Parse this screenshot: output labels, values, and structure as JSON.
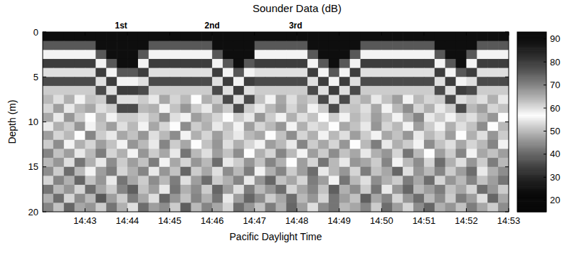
{
  "chart_data": {
    "type": "heatmap",
    "title": "Sounder Data (dB)",
    "x_label": "Pacific Daylight Time",
    "y_label": "Depth (m)",
    "xlim": [
      882,
      893
    ],
    "ylim": [
      0,
      20
    ],
    "xticks": [
      {
        "value": 883,
        "label": "14:43"
      },
      {
        "value": 884,
        "label": "14:44"
      },
      {
        "value": 885,
        "label": "14:45"
      },
      {
        "value": 886,
        "label": "14:46"
      },
      {
        "value": 887,
        "label": "14:47"
      },
      {
        "value": 888,
        "label": "14:48"
      },
      {
        "value": 889,
        "label": "14:49"
      },
      {
        "value": 890,
        "label": "14:50"
      },
      {
        "value": 891,
        "label": "14:51"
      },
      {
        "value": 892,
        "label": "14:52"
      },
      {
        "value": 893,
        "label": "14:53"
      }
    ],
    "yticks": [
      0,
      5,
      10,
      15,
      20
    ],
    "annotations": [
      {
        "text": "1st",
        "x": 883.85
      },
      {
        "text": "2nd",
        "x": 886.0
      },
      {
        "text": "3rd",
        "x": 887.97
      }
    ],
    "colorbar": {
      "range": [
        15,
        93
      ],
      "ticks": [
        20,
        30,
        40,
        50,
        60,
        70,
        80,
        90
      ]
    },
    "x": [
      882.125,
      882.375,
      882.625,
      882.875,
      883.125,
      883.375,
      883.625,
      883.875,
      884.125,
      884.375,
      884.625,
      884.875,
      885.125,
      885.375,
      885.625,
      885.875,
      886.125,
      886.375,
      886.625,
      886.875,
      887.125,
      887.375,
      887.625,
      887.875,
      888.125,
      888.375,
      888.625,
      888.875,
      889.125,
      889.375,
      889.625,
      889.875,
      890.125,
      890.375,
      890.625,
      890.875,
      891.125,
      891.375,
      891.625,
      891.875,
      892.125,
      892.375,
      892.625,
      892.875
    ],
    "y": [
      0.5,
      1.5,
      2.5,
      3.5,
      4.5,
      5.5,
      6.5,
      7.5,
      8.5,
      9.5,
      10.5,
      11.5,
      12.5,
      13.5,
      14.5,
      15.5,
      16.5,
      17.5,
      18.5,
      19.5
    ],
    "values": [
      [
        90,
        90,
        90,
        90,
        90,
        90,
        90,
        90,
        90,
        90,
        90,
        90,
        90,
        90,
        90,
        90,
        90,
        90,
        90,
        90,
        90,
        90,
        90,
        90,
        90,
        90,
        90,
        90,
        90,
        90,
        90,
        90,
        90,
        90,
        90,
        90,
        90,
        90,
        90,
        90,
        90,
        90,
        90,
        90
      ],
      [
        76,
        76,
        76,
        76,
        76,
        90,
        90,
        90,
        90,
        90,
        76,
        76,
        76,
        76,
        76,
        76,
        90,
        90,
        90,
        90,
        76,
        76,
        76,
        76,
        76,
        90,
        90,
        90,
        90,
        90,
        76,
        76,
        76,
        76,
        76,
        76,
        76,
        90,
        90,
        90,
        90,
        76,
        76,
        76
      ],
      [
        58,
        58,
        58,
        58,
        58,
        76,
        90,
        90,
        90,
        76,
        58,
        58,
        58,
        58,
        58,
        58,
        76,
        90,
        90,
        90,
        58,
        58,
        58,
        58,
        58,
        76,
        90,
        90,
        90,
        76,
        58,
        58,
        58,
        58,
        58,
        58,
        58,
        76,
        90,
        90,
        76,
        58,
        58,
        58
      ],
      [
        80,
        80,
        80,
        80,
        80,
        58,
        76,
        90,
        90,
        58,
        80,
        80,
        80,
        80,
        80,
        80,
        58,
        76,
        90,
        76,
        80,
        80,
        80,
        80,
        80,
        58,
        76,
        90,
        76,
        58,
        80,
        80,
        80,
        80,
        80,
        80,
        80,
        58,
        76,
        90,
        58,
        80,
        80,
        80
      ],
      [
        60,
        60,
        60,
        60,
        60,
        80,
        58,
        76,
        76,
        80,
        60,
        60,
        60,
        60,
        60,
        60,
        80,
        58,
        76,
        58,
        60,
        60,
        60,
        60,
        60,
        80,
        58,
        76,
        58,
        80,
        60,
        60,
        60,
        60,
        60,
        60,
        60,
        80,
        58,
        76,
        80,
        60,
        60,
        60
      ],
      [
        78,
        78,
        78,
        78,
        78,
        60,
        80,
        58,
        58,
        60,
        78,
        78,
        78,
        78,
        78,
        78,
        60,
        80,
        58,
        80,
        78,
        78,
        78,
        78,
        78,
        60,
        80,
        58,
        80,
        60,
        78,
        78,
        78,
        78,
        78,
        78,
        78,
        60,
        80,
        58,
        60,
        78,
        78,
        78
      ],
      [
        52,
        52,
        52,
        52,
        52,
        78,
        60,
        80,
        80,
        78,
        52,
        52,
        52,
        52,
        52,
        52,
        78,
        60,
        80,
        60,
        52,
        52,
        52,
        52,
        52,
        78,
        60,
        80,
        60,
        78,
        52,
        52,
        52,
        52,
        52,
        52,
        52,
        78,
        60,
        80,
        78,
        52,
        52,
        52
      ],
      [
        50,
        54,
        49,
        56,
        51,
        52,
        78,
        60,
        60,
        52,
        55,
        48,
        53,
        50,
        57,
        49,
        52,
        78,
        60,
        78,
        51,
        56,
        48,
        54,
        50,
        52,
        78,
        60,
        78,
        52,
        49,
        55,
        51,
        47,
        56,
        50,
        53,
        52,
        78,
        60,
        52,
        54,
        49,
        55
      ],
      [
        53,
        47,
        55,
        50,
        48,
        54,
        52,
        78,
        78,
        50,
        49,
        56,
        51,
        46,
        52,
        55,
        48,
        52,
        78,
        52,
        55,
        50,
        47,
        53,
        49,
        56,
        52,
        78,
        52,
        51,
        54,
        48,
        56,
        50,
        45,
        53,
        49,
        55,
        52,
        78,
        50,
        47,
        53,
        51
      ],
      [
        48,
        55,
        46,
        52,
        57,
        50,
        56,
        52,
        52,
        54,
        51,
        45,
        54,
        58,
        47,
        50,
        53,
        57,
        52,
        55,
        46,
        52,
        58,
        49,
        54,
        51,
        57,
        52,
        56,
        50,
        53,
        47,
        51,
        58,
        49,
        44,
        55,
        52,
        56,
        52,
        54,
        50,
        46,
        57
      ],
      [
        55,
        49,
        52,
        46,
        58,
        51,
        47,
        54,
        50,
        56,
        48,
        53,
        57,
        45,
        52,
        49,
        55,
        51,
        58,
        47,
        53,
        50,
        46,
        56,
        49,
        54,
        52,
        57,
        48,
        51,
        55,
        46,
        53,
        50,
        58,
        47,
        52,
        56,
        49,
        54,
        51,
        45,
        57,
        50
      ],
      [
        47,
        53,
        50,
        57,
        44,
        52,
        55,
        48,
        51,
        46,
        54,
        50,
        45,
        56,
        49,
        53,
        47,
        52,
        55,
        50,
        48,
        57,
        51,
        45,
        53,
        49,
        56,
        50,
        54,
        47,
        52,
        58,
        48,
        51,
        46,
        55,
        50,
        53,
        47,
        57,
        49,
        54,
        46,
        52
      ],
      [
        52,
        45,
        56,
        49,
        53,
        47,
        51,
        58,
        46,
        50,
        55,
        44,
        52,
        48,
        57,
        51,
        46,
        54,
        49,
        53,
        56,
        47,
        50,
        55,
        44,
        52,
        48,
        53,
        46,
        57,
        50,
        43,
        55,
        49,
        52,
        56,
        45,
        51,
        54,
        48,
        53,
        50,
        44,
        56
      ],
      [
        44,
        51,
        47,
        55,
        50,
        43,
        53,
        49,
        56,
        46,
        52,
        48,
        55,
        42,
        50,
        54,
        47,
        51,
        45,
        57,
        49,
        53,
        44,
        50,
        56,
        47,
        52,
        45,
        51,
        48,
        55,
        49,
        46,
        53,
        42,
        50,
        57,
        47,
        52,
        44,
        56,
        48,
        51,
        47
      ],
      [
        50,
        46,
        54,
        42,
        49,
        55,
        45,
        52,
        47,
        51,
        43,
        56,
        48,
        53,
        46,
        50,
        41,
        55,
        52,
        46,
        51,
        44,
        49,
        57,
        47,
        53,
        42,
        50,
        55,
        46,
        48,
        52,
        44,
        56,
        50,
        45,
        53,
        41,
        49,
        54,
        46,
        52,
        43,
        50
      ],
      [
        45,
        52,
        41,
        50,
        56,
        47,
        43,
        53,
        49,
        44,
        55,
        46,
        51,
        40,
        52,
        48,
        54,
        45,
        50,
        43,
        56,
        49,
        44,
        52,
        47,
        41,
        55,
        50,
        46,
        53,
        43,
        51,
        48,
        40,
        54,
        46,
        50,
        44,
        52,
        47,
        41,
        55,
        49,
        45
      ],
      [
        53,
        44,
        49,
        40,
        51,
        46,
        55,
        42,
        48,
        52,
        45,
        50,
        43,
        54,
        47,
        41,
        52,
        49,
        44,
        55,
        46,
        40,
        51,
        48,
        53,
        43,
        47,
        56,
        42,
        50,
        54,
        45,
        49,
        52,
        43,
        48,
        41,
        53,
        46,
        50,
        44,
        51,
        47,
        42
      ],
      [
        42,
        50,
        46,
        53,
        41,
        48,
        52,
        44,
        39,
        51,
        47,
        55,
        42,
        49,
        45,
        52,
        40,
        47,
        54,
        43,
        50,
        46,
        41,
        53,
        48,
        44,
        51,
        39,
        49,
        45,
        52,
        42,
        55,
        46,
        40,
        50,
        47,
        43,
        51,
        48,
        53,
        41,
        46,
        52
      ],
      [
        49,
        41,
        53,
        45,
        50,
        38,
        47,
        52,
        43,
        48,
        54,
        40,
        46,
        51,
        44,
        49,
        42,
        55,
        47,
        40,
        45,
        52,
        48,
        41,
        50,
        46,
        53,
        42,
        47,
        51,
        39,
        48,
        44,
        53,
        46,
        41,
        50,
        45,
        52,
        43,
        47,
        54,
        40,
        48
      ],
      [
        44,
        51,
        40,
        48,
        46,
        52,
        42,
        49,
        54,
        41,
        47,
        45,
        52,
        39,
        50,
        44,
        48,
        53,
        41,
        46,
        51,
        43,
        49,
        40,
        47,
        54,
        45,
        42,
        50,
        48,
        44,
        52,
        41,
        47,
        53,
        45,
        40,
        49,
        46,
        51,
        43,
        48,
        52,
        45
      ]
    ]
  }
}
